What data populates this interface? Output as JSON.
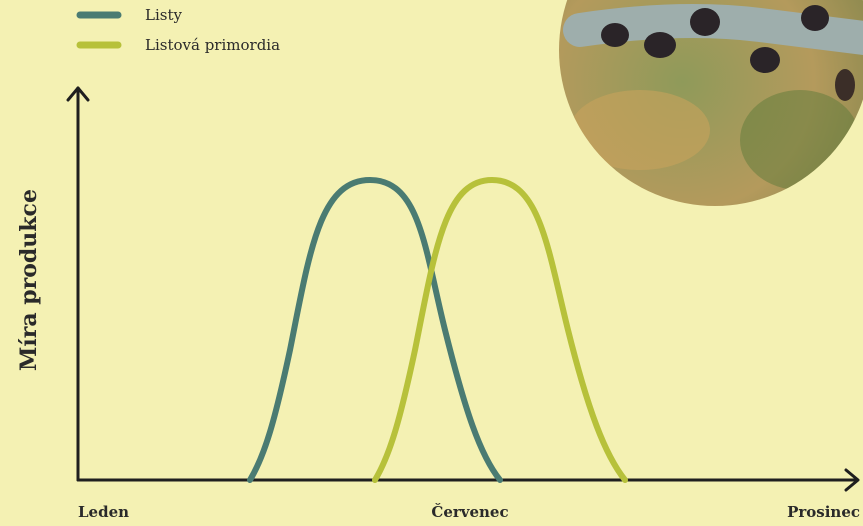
{
  "legend": {
    "items": [
      {
        "label": "Listy"
      },
      {
        "label": "Listová primordia"
      }
    ]
  },
  "axes": {
    "y_label": "Míra produkce",
    "x_labels": [
      "Leden",
      "Červenec",
      "Prosinec"
    ]
  }
}
